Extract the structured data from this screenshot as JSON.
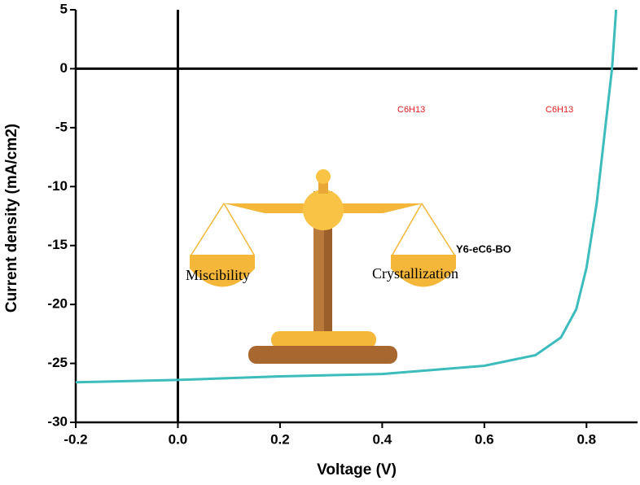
{
  "chart_data": {
    "type": "line",
    "xlabel": "Voltage (V)",
    "ylabel": "Current density (mA/cm2)",
    "x": [
      -0.2,
      0.0,
      0.2,
      0.4,
      0.6,
      0.7,
      0.75,
      0.78,
      0.8,
      0.82,
      0.84,
      0.85,
      0.858
    ],
    "series": [
      {
        "name": "Y6-eC6-BO",
        "color": "#3cbcbc",
        "values": [
          -26.6,
          -26.4,
          -26.1,
          -25.9,
          -25.2,
          -24.3,
          -22.8,
          -20.4,
          -16.9,
          -11.4,
          -3.8,
          0,
          5
        ]
      }
    ],
    "xlim": [
      -0.2,
      0.9
    ],
    "ylim": [
      -30,
      5
    ],
    "xticks": [
      -0.2,
      {
        "value": 0,
        "label": "0.0"
      },
      0.2,
      0.4,
      0.6,
      0.8
    ],
    "yticks": [
      5,
      0,
      -5,
      -10,
      -15,
      -20,
      -25,
      -30
    ],
    "annotations": [
      "Miscibility",
      "Crystallization",
      "C6H13",
      "C6H13"
    ]
  }
}
